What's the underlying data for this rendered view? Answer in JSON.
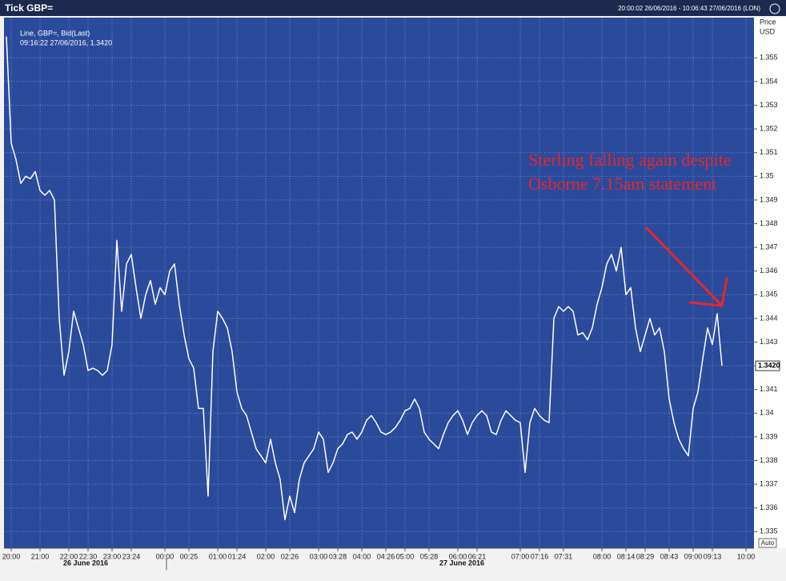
{
  "chart_data": {
    "type": "line",
    "title": "Tick GBP=",
    "subtitle": "20:00:02 26/06/2016 - 10:06:43 27/06/2016 (LON)",
    "y_axis_label": "Price",
    "y_axis_unit": "USD",
    "cursor_label": "09:16:22 27/06/2016, 1.3420",
    "last_price": {
      "value": 1.342,
      "label": "1.3420"
    },
    "scale_button": "Auto",
    "date_labels": [
      "26 June 2016",
      "27 June 2016"
    ],
    "annotation": [
      "Sterling falling again despite",
      "Osborne 7.15am statement"
    ],
    "annotation_color": "#e8262a",
    "grid": true,
    "categories": [
      null,
      "20:00",
      null,
      null,
      null,
      null,
      null,
      "21:00",
      null,
      null,
      null,
      null,
      null,
      "22:00",
      null,
      null,
      null,
      "22:30",
      null,
      null,
      null,
      null,
      "23:00",
      null,
      null,
      null,
      "23:24",
      null,
      null,
      null,
      null,
      null,
      null,
      "00:00",
      null,
      null,
      null,
      null,
      "00:25",
      null,
      null,
      null,
      null,
      null,
      "01:00",
      null,
      null,
      null,
      "01:24",
      null,
      null,
      null,
      null,
      null,
      "02:00",
      null,
      null,
      null,
      null,
      "02:26",
      null,
      null,
      null,
      null,
      null,
      "03:00",
      null,
      null,
      null,
      "03:28",
      null,
      null,
      null,
      null,
      "04:00",
      null,
      null,
      null,
      null,
      "04:26",
      null,
      null,
      null,
      "05:00",
      null,
      null,
      null,
      null,
      "05:28",
      null,
      null,
      null,
      null,
      null,
      "06:00",
      null,
      null,
      null,
      "06:21",
      null,
      null,
      null,
      null,
      null,
      null,
      null,
      null,
      "07:00",
      null,
      null,
      null,
      "07:16",
      null,
      null,
      null,
      null,
      "07:31",
      null,
      null,
      null,
      null,
      null,
      null,
      null,
      "08:00",
      null,
      null,
      null,
      null,
      "08:14",
      null,
      null,
      null,
      "08:29",
      null,
      null,
      null,
      null,
      "08:43",
      null,
      null,
      null,
      null,
      "09:00",
      null,
      null,
      null,
      "09:13",
      null,
      null,
      null,
      null,
      null,
      null,
      "10:00"
    ],
    "series": [
      {
        "name": "Line, GBP=, Bid(Last)",
        "color": "#ffffff",
        "values": [
          1.3559,
          1.3514,
          1.3507,
          1.3497,
          1.35,
          1.3499,
          1.3502,
          1.3494,
          1.3492,
          1.3494,
          1.349,
          1.344,
          1.3416,
          1.3426,
          1.3443,
          1.3436,
          1.3429,
          1.3418,
          1.3419,
          1.3418,
          1.3416,
          1.3418,
          1.3429,
          1.3473,
          1.3443,
          1.3463,
          1.3467,
          1.3453,
          1.344,
          1.345,
          1.3456,
          1.3446,
          1.3453,
          1.345,
          1.346,
          1.3463,
          1.3446,
          1.3433,
          1.3423,
          1.3419,
          1.3402,
          1.3402,
          1.3365,
          1.3426,
          1.3443,
          1.344,
          1.3436,
          1.3426,
          1.3409,
          1.3402,
          1.3399,
          1.3392,
          1.3385,
          1.3382,
          1.3379,
          1.3389,
          1.3379,
          1.3372,
          1.3355,
          1.3365,
          1.3358,
          1.3372,
          1.3379,
          1.3382,
          1.3385,
          1.3392,
          1.3389,
          1.3375,
          1.3379,
          1.3385,
          1.3387,
          1.3391,
          1.3392,
          1.3389,
          1.3392,
          1.3397,
          1.3399,
          1.3396,
          1.3392,
          1.3391,
          1.3392,
          1.3394,
          1.3397,
          1.3401,
          1.3402,
          1.3406,
          1.3402,
          1.3392,
          1.3389,
          1.3387,
          1.3385,
          1.3391,
          1.3396,
          1.3399,
          1.3401,
          1.3397,
          1.3391,
          1.3396,
          1.3399,
          1.3401,
          1.3399,
          1.3392,
          1.3391,
          1.3397,
          1.3401,
          1.3399,
          1.3397,
          1.3396,
          1.3375,
          1.3396,
          1.3402,
          1.3399,
          1.3397,
          1.3396,
          1.344,
          1.3445,
          1.3443,
          1.3445,
          1.3443,
          1.3433,
          1.3434,
          1.3431,
          1.3436,
          1.3446,
          1.3453,
          1.3463,
          1.3467,
          1.346,
          1.347,
          1.345,
          1.3453,
          1.3436,
          1.3426,
          1.3433,
          1.344,
          1.3433,
          1.3436,
          1.3426,
          1.3406,
          1.3396,
          1.3389,
          1.3385,
          1.3382,
          1.3402,
          1.3409,
          1.3423,
          1.3436,
          1.3429,
          1.3442,
          1.342,
          null,
          null,
          null,
          null,
          null
        ]
      }
    ],
    "ylim": [
      1.3343,
      1.3567
    ],
    "yticks": [
      1.335,
      1.336,
      1.337,
      1.338,
      1.339,
      1.34,
      1.341,
      1.342,
      1.343,
      1.344,
      1.345,
      1.346,
      1.347,
      1.348,
      1.349,
      1.35,
      1.351,
      1.352,
      1.353,
      1.354,
      1.355
    ]
  }
}
